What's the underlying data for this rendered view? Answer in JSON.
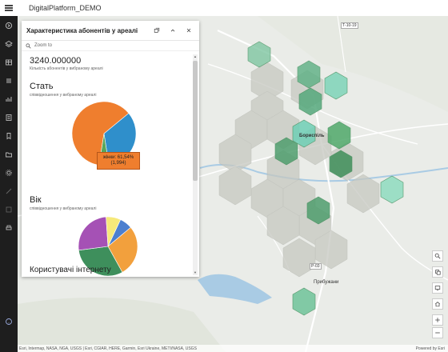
{
  "header": {
    "app_title": "DigitalPlatform_DEMO"
  },
  "panel": {
    "title": "Характеристика абонентів у ареалі",
    "zoom_to": "Zoom to",
    "count_value": "3240.000000",
    "count_caption": "Кількість абонентів у вибраному ареалі",
    "sections": {
      "stat": {
        "title": "Стать",
        "subtitle": "співвідношення у вибраному ареалі"
      },
      "vik": {
        "title": "Вік",
        "subtitle": "співвідношення у вибраному ареалі"
      },
      "internet": {
        "title": "Користувачі інтернету"
      }
    },
    "tooltip": {
      "line1": "жінки: 61,54%",
      "line2": "(1,994)"
    }
  },
  "chart_data": [
    {
      "type": "pie",
      "title": "Стать",
      "slices": [
        {
          "label": "жінки",
          "value": 61.54,
          "count": 1994,
          "color": "#ef7e2e"
        },
        {
          "label": "",
          "value": 33.5,
          "color": "#2f8fcb"
        },
        {
          "label": "",
          "value": 4.96,
          "color": "#58a65c"
        }
      ]
    },
    {
      "type": "pie",
      "title": "Вік",
      "slices": [
        {
          "label": "",
          "value": 7,
          "color": "#4c7fcf"
        },
        {
          "label": "",
          "value": 28,
          "color": "#f2a03d"
        },
        {
          "label": "",
          "value": 31,
          "color": "#3e8f5c"
        },
        {
          "label": "",
          "value": 26,
          "color": "#a551b5"
        },
        {
          "label": "",
          "value": 8,
          "color": "#f6e97a"
        }
      ]
    }
  ],
  "map": {
    "labels": {
      "city": "Бориспіль",
      "town": "Прибужани",
      "road1": "Т-10-19",
      "road2": "Р-03"
    },
    "attribution": "Esri, Intermap, NASA, NGA, USGS | Esri, CGIAR, HERE, Garmin, Esri Ukraine, METI/NASA, USGS",
    "powered_by": "Powered by Esri"
  },
  "colors": {
    "hex_green": "#4fa86a",
    "hex_light": "#7fd4b0",
    "hex_gray": "#c9cbc4",
    "rail": "#1e1e1e"
  }
}
